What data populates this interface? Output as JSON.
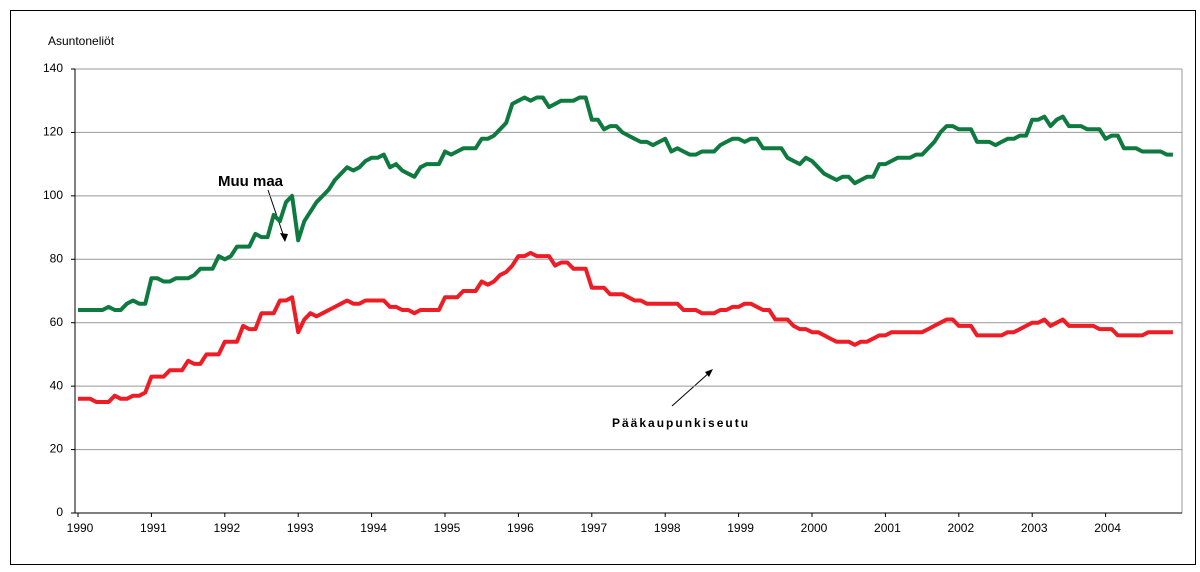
{
  "chart_data": {
    "type": "line",
    "y_label": "Asuntoneliöt",
    "categories": [
      "1990",
      null,
      null,
      null,
      null,
      null,
      null,
      null,
      null,
      null,
      null,
      null,
      "1991",
      null,
      null,
      null,
      null,
      null,
      null,
      null,
      null,
      null,
      null,
      null,
      "1992",
      null,
      null,
      null,
      null,
      null,
      null,
      null,
      null,
      null,
      null,
      null,
      "1993",
      null,
      null,
      null,
      null,
      null,
      null,
      null,
      null,
      null,
      null,
      null,
      "1994",
      null,
      null,
      null,
      null,
      null,
      null,
      null,
      null,
      null,
      null,
      null,
      "1995",
      null,
      null,
      null,
      null,
      null,
      null,
      null,
      null,
      null,
      null,
      null,
      "1996",
      null,
      null,
      null,
      null,
      null,
      null,
      null,
      null,
      null,
      null,
      null,
      "1997",
      null,
      null,
      null,
      null,
      null,
      null,
      null,
      null,
      null,
      null,
      null,
      "1998",
      null,
      null,
      null,
      null,
      null,
      null,
      null,
      null,
      null,
      null,
      null,
      "1999",
      null,
      null,
      null,
      null,
      null,
      null,
      null,
      null,
      null,
      null,
      null,
      "2000",
      null,
      null,
      null,
      null,
      null,
      null,
      null,
      null,
      null,
      null,
      null,
      "2001",
      null,
      null,
      null,
      null,
      null,
      null,
      null,
      null,
      null,
      null,
      null,
      "2002",
      null,
      null,
      null,
      null,
      null,
      null,
      null,
      null,
      null,
      null,
      null,
      "2003",
      null,
      null,
      null,
      null,
      null,
      null,
      null,
      null,
      null,
      null,
      null,
      "2004",
      null,
      null,
      null,
      null,
      null,
      null,
      null,
      null,
      null,
      null,
      null
    ],
    "series": [
      {
        "name": "Muu maa",
        "color": "#0f7a40",
        "values": [
          64,
          64,
          64,
          64,
          64,
          65,
          64,
          64,
          66,
          67,
          66,
          66,
          74,
          74,
          73,
          73,
          74,
          74,
          74,
          75,
          77,
          77,
          77,
          81,
          80,
          81,
          84,
          84,
          84,
          88,
          87,
          87,
          94,
          92,
          98,
          100,
          86,
          92,
          95,
          98,
          100,
          102,
          105,
          107,
          109,
          108,
          109,
          111,
          112,
          112,
          113,
          109,
          110,
          108,
          107,
          106,
          109,
          110,
          110,
          110,
          114,
          113,
          114,
          115,
          115,
          115,
          118,
          118,
          119,
          121,
          123,
          129,
          130,
          131,
          130,
          131,
          131,
          128,
          129,
          130,
          130,
          130,
          131,
          131,
          124,
          124,
          121,
          122,
          122,
          120,
          119,
          118,
          117,
          117,
          116,
          117,
          118,
          114,
          115,
          114,
          113,
          113,
          114,
          114,
          114,
          116,
          117,
          118,
          118,
          117,
          118,
          118,
          115,
          115,
          115,
          115,
          112,
          111,
          110,
          112,
          111,
          109,
          107,
          106,
          105,
          106,
          106,
          104,
          105,
          106,
          106,
          110,
          110,
          111,
          112,
          112,
          112,
          113,
          113,
          115,
          117,
          120,
          122,
          122,
          121,
          121,
          121,
          117,
          117,
          117,
          116,
          117,
          118,
          118,
          119,
          119,
          124,
          124,
          125,
          122,
          124,
          125,
          122,
          122,
          122,
          121,
          121,
          121,
          118,
          119,
          119,
          115,
          115,
          115,
          114,
          114,
          114,
          114,
          113,
          113
        ]
      },
      {
        "name": "Pääkaupunkiseutu",
        "color": "#ee1c25",
        "values": [
          36,
          36,
          36,
          35,
          35,
          35,
          37,
          36,
          36,
          37,
          37,
          38,
          43,
          43,
          43,
          45,
          45,
          45,
          48,
          47,
          47,
          50,
          50,
          50,
          54,
          54,
          54,
          59,
          58,
          58,
          63,
          63,
          63,
          67,
          67,
          68,
          57,
          61,
          63,
          62,
          63,
          64,
          65,
          66,
          67,
          66,
          66,
          67,
          67,
          67,
          67,
          65,
          65,
          64,
          64,
          63,
          64,
          64,
          64,
          64,
          68,
          68,
          68,
          70,
          70,
          70,
          73,
          72,
          73,
          75,
          76,
          78,
          81,
          81,
          82,
          81,
          81,
          81,
          78,
          79,
          79,
          77,
          77,
          77,
          71,
          71,
          71,
          69,
          69,
          69,
          68,
          67,
          67,
          66,
          66,
          66,
          66,
          66,
          66,
          64,
          64,
          64,
          63,
          63,
          63,
          64,
          64,
          65,
          65,
          66,
          66,
          65,
          64,
          64,
          61,
          61,
          61,
          59,
          58,
          58,
          57,
          57,
          56,
          55,
          54,
          54,
          54,
          53,
          54,
          54,
          55,
          56,
          56,
          57,
          57,
          57,
          57,
          57,
          57,
          58,
          59,
          60,
          61,
          61,
          59,
          59,
          59,
          56,
          56,
          56,
          56,
          56,
          57,
          57,
          58,
          59,
          60,
          60,
          61,
          59,
          60,
          61,
          59,
          59,
          59,
          59,
          59,
          58,
          58,
          58,
          56,
          56,
          56,
          56,
          56,
          57,
          57,
          57,
          57,
          57
        ]
      }
    ],
    "ylim": [
      0,
      140
    ],
    "yticks": [
      0,
      20,
      40,
      60,
      80,
      100,
      120,
      140
    ],
    "grid": true
  }
}
